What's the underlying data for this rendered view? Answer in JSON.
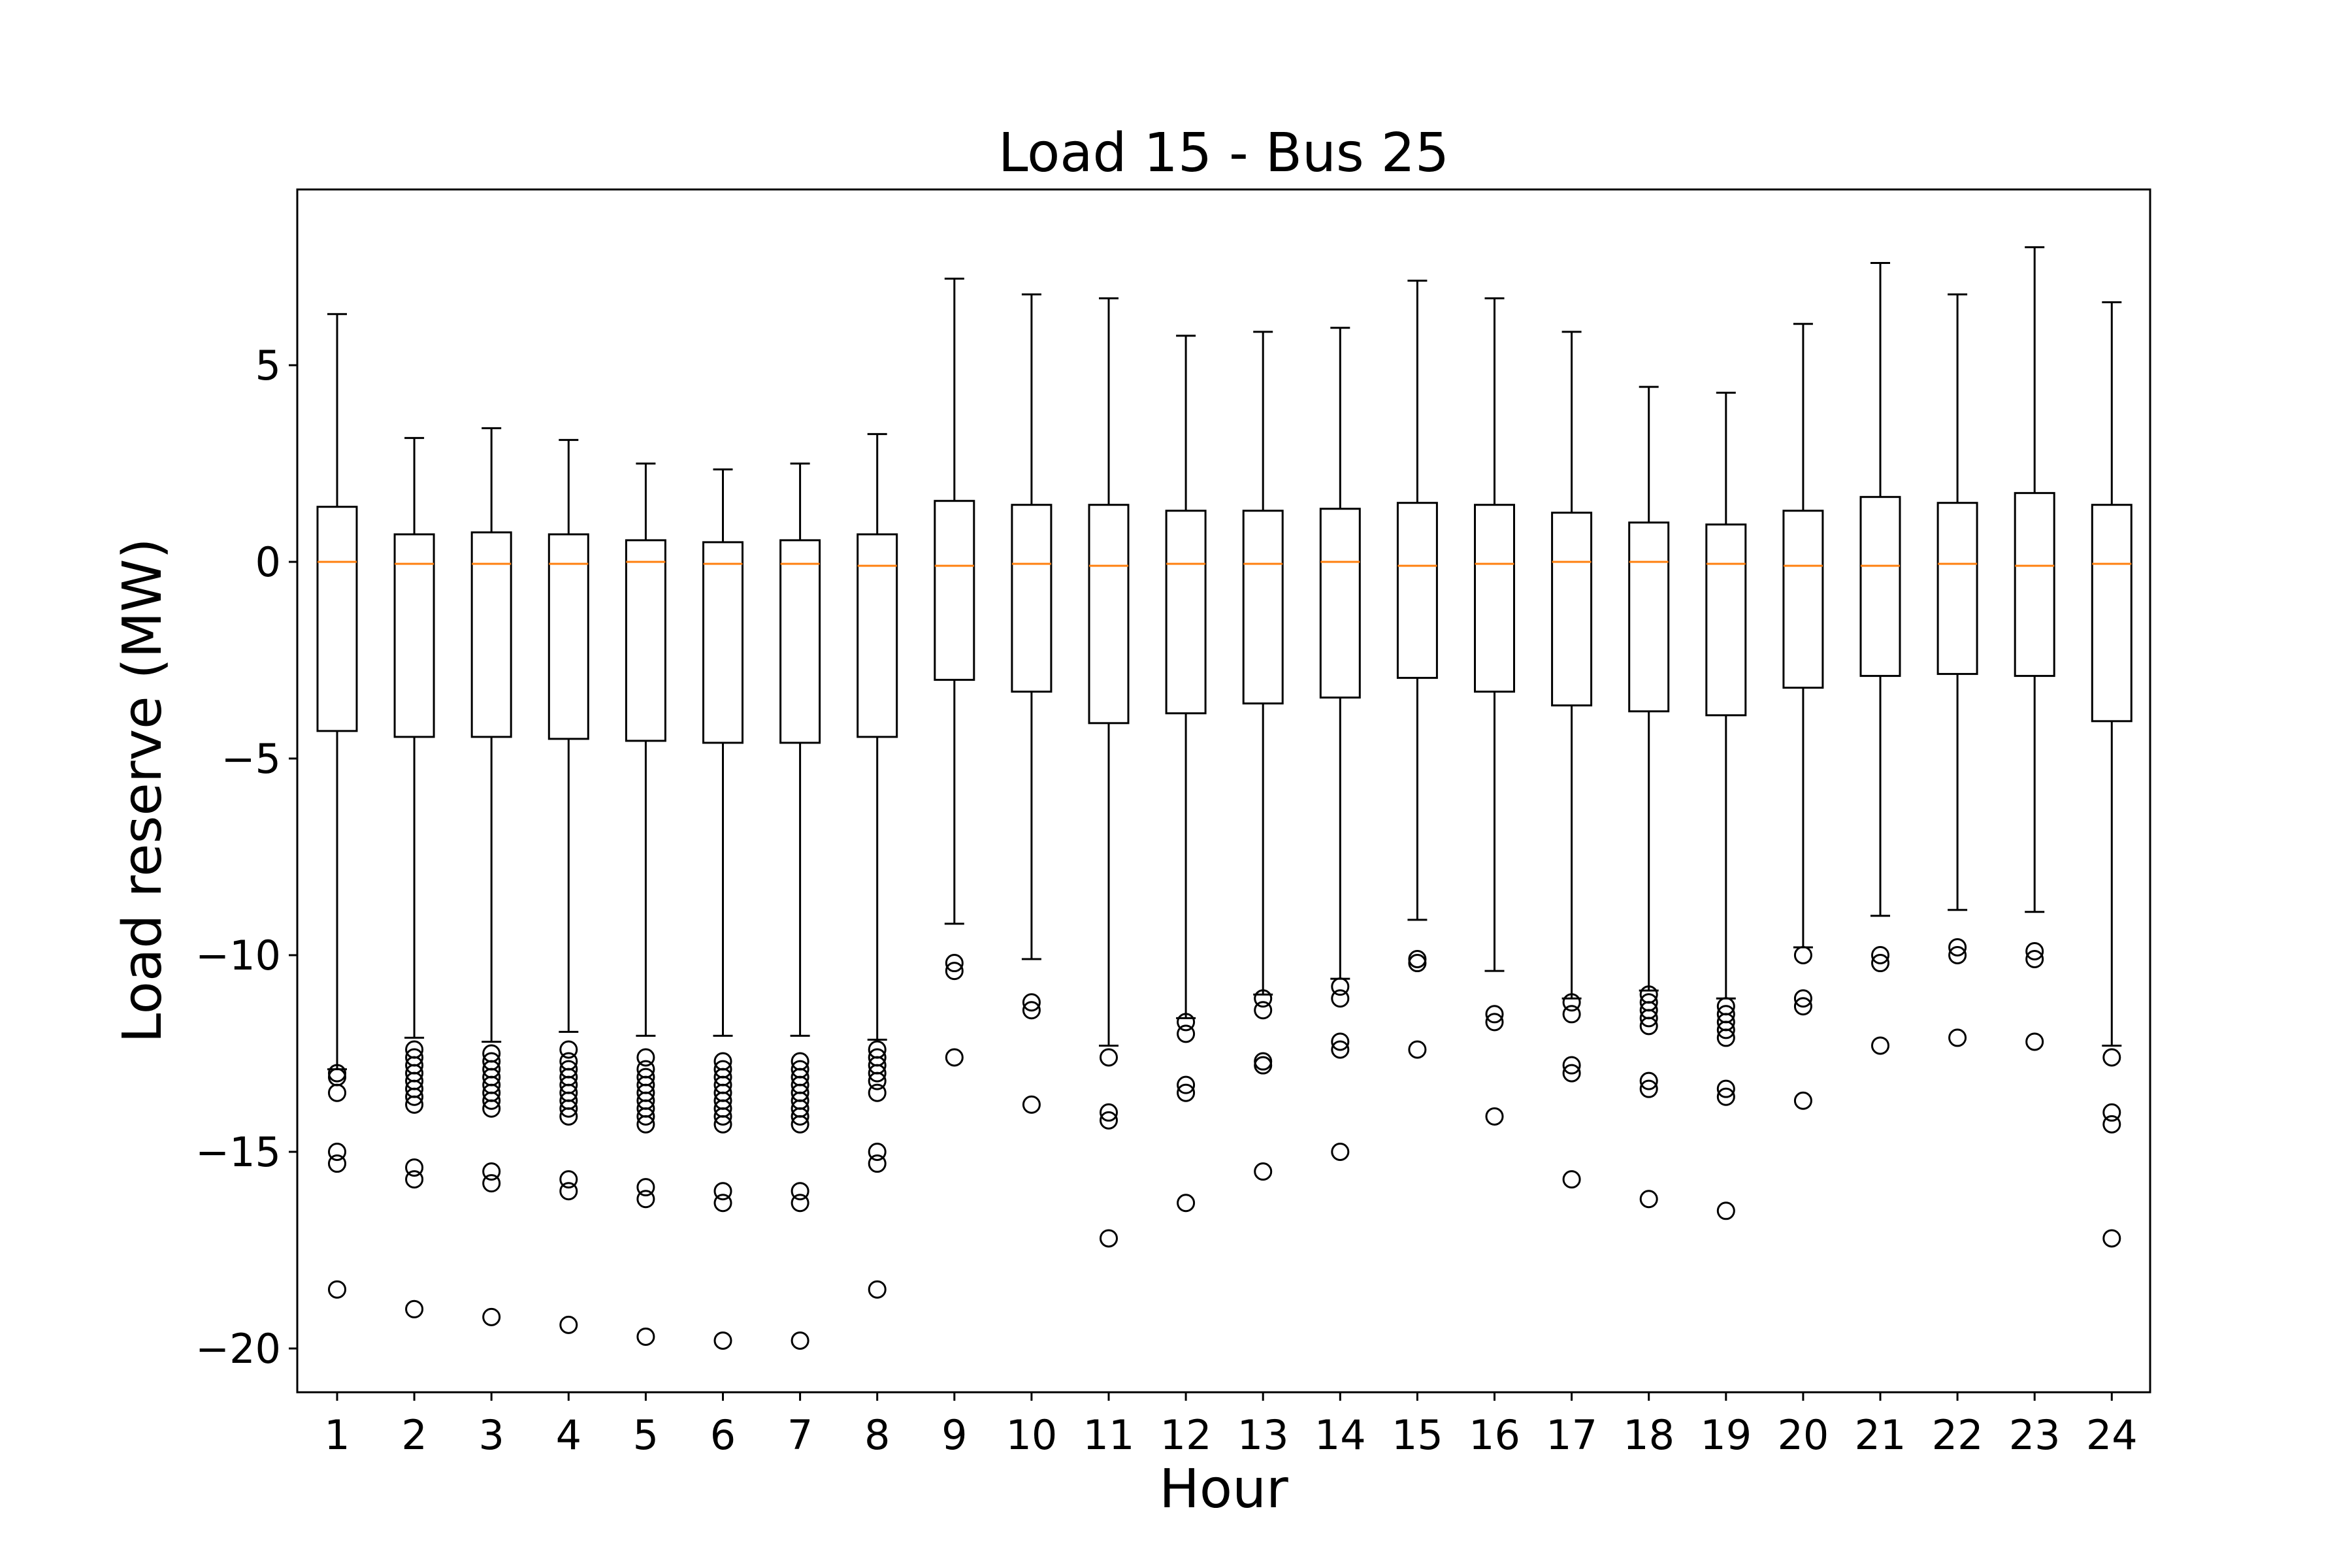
{
  "chart_data": {
    "type": "boxplot",
    "title": "Load 15 - Bus 25",
    "xlabel": "Hour",
    "ylabel": "Load reserve (MW)",
    "ylim": [
      -21.1,
      9.4
    ],
    "yticks": [
      5,
      0,
      -5,
      -10,
      -15,
      -20
    ],
    "ytick_labels": [
      "5",
      "0",
      "−5",
      "−10",
      "−15",
      "−20"
    ],
    "categories": [
      "1",
      "2",
      "3",
      "4",
      "5",
      "6",
      "7",
      "8",
      "9",
      "10",
      "11",
      "12",
      "13",
      "14",
      "15",
      "16",
      "17",
      "18",
      "19",
      "20",
      "21",
      "22",
      "23",
      "24"
    ],
    "grid": false,
    "colors": {
      "box": "#000000",
      "median": "#ff7f0e",
      "flier": "#000000"
    },
    "boxes": [
      {
        "whisker_low": -12.9,
        "q1": -4.3,
        "median": 0.0,
        "q3": 1.4,
        "whisker_high": 6.3,
        "fliers": [
          -13.0,
          -13.1,
          -13.5,
          -15.0,
          -15.3,
          -18.5
        ]
      },
      {
        "whisker_low": -12.1,
        "q1": -4.45,
        "median": -0.05,
        "q3": 0.7,
        "whisker_high": 3.15,
        "fliers": [
          -12.4,
          -12.6,
          -12.8,
          -13.0,
          -13.2,
          -13.4,
          -13.6,
          -13.8,
          -15.4,
          -15.7,
          -19.0
        ]
      },
      {
        "whisker_low": -12.2,
        "q1": -4.45,
        "median": -0.05,
        "q3": 0.75,
        "whisker_high": 3.4,
        "fliers": [
          -12.5,
          -12.7,
          -12.9,
          -13.1,
          -13.3,
          -13.5,
          -13.7,
          -13.9,
          -15.5,
          -15.8,
          -19.2
        ]
      },
      {
        "whisker_low": -11.95,
        "q1": -4.5,
        "median": -0.05,
        "q3": 0.7,
        "whisker_high": 3.1,
        "fliers": [
          -12.4,
          -12.7,
          -12.9,
          -13.1,
          -13.3,
          -13.5,
          -13.7,
          -13.9,
          -14.1,
          -15.7,
          -16.0,
          -19.4
        ]
      },
      {
        "whisker_low": -12.05,
        "q1": -4.55,
        "median": 0.0,
        "q3": 0.55,
        "whisker_high": 2.5,
        "fliers": [
          -12.6,
          -12.9,
          -13.1,
          -13.3,
          -13.5,
          -13.7,
          -13.9,
          -14.1,
          -14.3,
          -15.9,
          -16.2,
          -19.7
        ]
      },
      {
        "whisker_low": -12.05,
        "q1": -4.6,
        "median": -0.05,
        "q3": 0.5,
        "whisker_high": 2.35,
        "fliers": [
          -12.7,
          -12.9,
          -13.1,
          -13.3,
          -13.5,
          -13.7,
          -13.9,
          -14.1,
          -14.3,
          -16.0,
          -16.3,
          -19.8
        ]
      },
      {
        "whisker_low": -12.05,
        "q1": -4.6,
        "median": -0.05,
        "q3": 0.55,
        "whisker_high": 2.5,
        "fliers": [
          -12.7,
          -12.9,
          -13.1,
          -13.3,
          -13.5,
          -13.7,
          -13.9,
          -14.1,
          -14.3,
          -16.0,
          -16.3,
          -19.8
        ]
      },
      {
        "whisker_low": -12.15,
        "q1": -4.45,
        "median": -0.1,
        "q3": 0.7,
        "whisker_high": 3.25,
        "fliers": [
          -12.4,
          -12.6,
          -12.8,
          -13.0,
          -13.2,
          -13.5,
          -15.0,
          -15.3,
          -18.5
        ]
      },
      {
        "whisker_low": -9.2,
        "q1": -3.0,
        "median": -0.1,
        "q3": 1.55,
        "whisker_high": 7.2,
        "fliers": [
          -10.2,
          -10.4,
          -12.6
        ]
      },
      {
        "whisker_low": -10.1,
        "q1": -3.3,
        "median": -0.05,
        "q3": 1.45,
        "whisker_high": 6.8,
        "fliers": [
          -11.2,
          -11.4,
          -13.8
        ]
      },
      {
        "whisker_low": -12.3,
        "q1": -4.1,
        "median": -0.1,
        "q3": 1.45,
        "whisker_high": 6.7,
        "fliers": [
          -12.6,
          -14.0,
          -14.2,
          -17.2
        ]
      },
      {
        "whisker_low": -11.6,
        "q1": -3.85,
        "median": -0.05,
        "q3": 1.3,
        "whisker_high": 5.75,
        "fliers": [
          -11.7,
          -12.0,
          -13.3,
          -13.5,
          -16.3
        ]
      },
      {
        "whisker_low": -11.0,
        "q1": -3.6,
        "median": -0.05,
        "q3": 1.3,
        "whisker_high": 5.85,
        "fliers": [
          -11.1,
          -11.4,
          -12.7,
          -12.8,
          -15.5
        ]
      },
      {
        "whisker_low": -10.6,
        "q1": -3.45,
        "median": 0.0,
        "q3": 1.35,
        "whisker_high": 5.95,
        "fliers": [
          -10.8,
          -11.1,
          -12.2,
          -12.4,
          -15.0
        ]
      },
      {
        "whisker_low": -9.1,
        "q1": -2.95,
        "median": -0.1,
        "q3": 1.5,
        "whisker_high": 7.15,
        "fliers": [
          -10.1,
          -10.2,
          -12.4
        ]
      },
      {
        "whisker_low": -10.4,
        "q1": -3.3,
        "median": -0.05,
        "q3": 1.45,
        "whisker_high": 6.7,
        "fliers": [
          -11.5,
          -11.7,
          -14.1
        ]
      },
      {
        "whisker_low": -11.1,
        "q1": -3.65,
        "median": 0.0,
        "q3": 1.25,
        "whisker_high": 5.85,
        "fliers": [
          -11.2,
          -11.5,
          -12.8,
          -13.0,
          -15.7
        ]
      },
      {
        "whisker_low": -10.9,
        "q1": -3.8,
        "median": 0.0,
        "q3": 1.0,
        "whisker_high": 4.45,
        "fliers": [
          -11.0,
          -11.2,
          -11.4,
          -11.6,
          -11.8,
          -13.2,
          -13.4,
          -16.2
        ]
      },
      {
        "whisker_low": -11.1,
        "q1": -3.9,
        "median": -0.05,
        "q3": 0.95,
        "whisker_high": 4.3,
        "fliers": [
          -11.3,
          -11.5,
          -11.7,
          -11.9,
          -12.1,
          -13.4,
          -13.6,
          -16.5
        ]
      },
      {
        "whisker_low": -9.8,
        "q1": -3.2,
        "median": -0.1,
        "q3": 1.3,
        "whisker_high": 6.05,
        "fliers": [
          -10.0,
          -11.1,
          -11.3,
          -13.7
        ]
      },
      {
        "whisker_low": -9.0,
        "q1": -2.9,
        "median": -0.1,
        "q3": 1.65,
        "whisker_high": 7.6,
        "fliers": [
          -10.0,
          -10.2,
          -12.3
        ]
      },
      {
        "whisker_low": -8.85,
        "q1": -2.85,
        "median": -0.05,
        "q3": 1.5,
        "whisker_high": 6.8,
        "fliers": [
          -9.8,
          -10.0,
          -12.1
        ]
      },
      {
        "whisker_low": -8.9,
        "q1": -2.9,
        "median": -0.1,
        "q3": 1.75,
        "whisker_high": 8.0,
        "fliers": [
          -9.9,
          -10.1,
          -12.2
        ]
      },
      {
        "whisker_low": -12.3,
        "q1": -4.05,
        "median": -0.05,
        "q3": 1.45,
        "whisker_high": 6.6,
        "fliers": [
          -12.6,
          -14.0,
          -14.3,
          -17.2
        ]
      }
    ]
  }
}
